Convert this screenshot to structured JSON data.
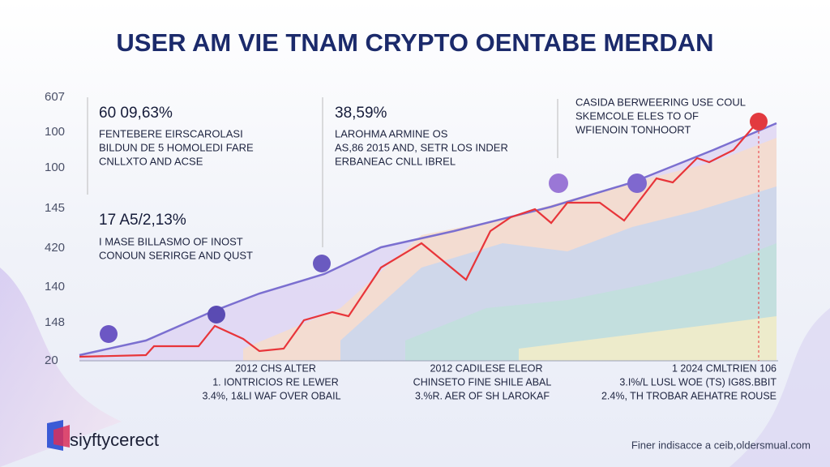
{
  "title": "USER AM VIE TNAM CRYPTO OENTABE MERDAN",
  "y_labels": [
    "607",
    "100",
    "100",
    "145",
    "420",
    "140",
    "148",
    "20"
  ],
  "annotations": [
    {
      "value": "60 09,63%",
      "lines": [
        "FENTEBERE EIRSCAROLASI",
        "BILDUN DE 5 HOMOLEDI FARE",
        "CNLLXTO AND ACSE"
      ]
    },
    {
      "value": "38,59%",
      "lines": [
        "LAROHMA ARMINE OS",
        "AS,86 2015 AND, SETR LOS INDER",
        "ERBANEAC CNLL IBREL"
      ]
    },
    {
      "lines": [
        "CASIDA BERWEERING USE COUL",
        "SKEMCOLE ELES TO OF",
        "WFIENOIN TONHOORT"
      ]
    },
    {
      "value": "17 A5/2,13%",
      "lines": [
        "I MASE BILLASMO OF INOST",
        "CONOUN SERIRGE AND QUST"
      ]
    }
  ],
  "bottom_notes": [
    [
      "2012 CHS ALTER",
      "1. IONTRICIOS RE LEWER",
      "3.4%, 1&LI WAF OVER OBAIL"
    ],
    [
      "2012 CADILESE ELEOR",
      "CHINSETO FINE SHILE ABAL",
      "3.%R. AER OF SH LAROKAF"
    ],
    [
      "1 2024 CMLTRIEN 106",
      "3.I%/L LUSL WOE (TS) IG8S.BBIT",
      "2.4%, TH TROBAR AEHATRE ROUSE"
    ]
  ],
  "logo": "siyftycerect",
  "footer": "Finer indisacce a ceib,oldersmual.com"
}
